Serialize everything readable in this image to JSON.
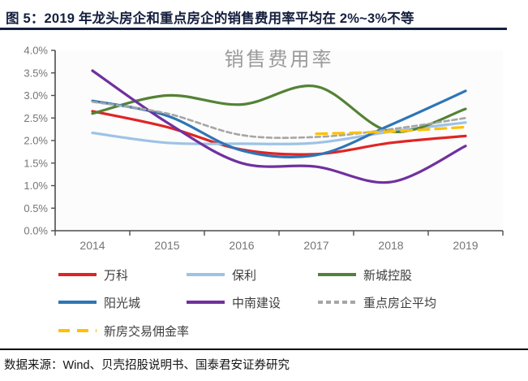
{
  "header": {
    "title": "图 5：2019 年龙头房企和重点房企的销售费用率平均在 2%~3%不等"
  },
  "footer": {
    "source": "数据来源：Wind、贝壳招股说明书、国泰君安证券研究"
  },
  "chart_data": {
    "type": "line",
    "title": "销售费用率",
    "categories": [
      "2014",
      "2015",
      "2016",
      "2017",
      "2018",
      "2019"
    ],
    "xlabel": "",
    "ylabel": "",
    "ylim": [
      0.0,
      4.0
    ],
    "y_tick_labels": [
      "0.0%",
      "0.5%",
      "1.0%",
      "1.5%",
      "2.0%",
      "2.5%",
      "3.0%",
      "3.5%",
      "4.0%"
    ],
    "grid": false,
    "legend_position": "bottom",
    "line_shape": "smooth",
    "series": [
      {
        "id": "vanke",
        "name": "万科",
        "color": "#e02424",
        "style": "solid",
        "values": [
          2.65,
          2.3,
          1.8,
          1.7,
          1.95,
          2.1
        ]
      },
      {
        "id": "poly",
        "name": "保利",
        "color": "#9dc3e6",
        "style": "solid",
        "values": [
          2.17,
          1.95,
          1.93,
          1.95,
          2.2,
          2.4
        ]
      },
      {
        "id": "seazen",
        "name": "新城控股",
        "color": "#548235",
        "style": "solid",
        "values": [
          2.6,
          3.0,
          2.8,
          3.2,
          2.2,
          2.7
        ]
      },
      {
        "id": "yango",
        "name": "阳光城",
        "color": "#2e75b6",
        "style": "solid",
        "values": [
          2.88,
          2.55,
          1.78,
          1.68,
          2.35,
          3.1
        ]
      },
      {
        "id": "zhongnan",
        "name": "中南建设",
        "color": "#7030a0",
        "style": "solid",
        "values": [
          3.55,
          2.4,
          1.5,
          1.42,
          1.08,
          1.88
        ]
      },
      {
        "id": "key-avg",
        "name": "重点房企平均",
        "color": "#a6a6a6",
        "style": "dashed",
        "values": [
          2.86,
          2.6,
          2.12,
          2.08,
          2.25,
          2.5
        ]
      },
      {
        "id": "commission",
        "name": "新房交易佣金率",
        "color": "#ffc000",
        "style": "long-dashed",
        "values": [
          null,
          null,
          null,
          2.15,
          2.2,
          2.3
        ]
      }
    ]
  }
}
